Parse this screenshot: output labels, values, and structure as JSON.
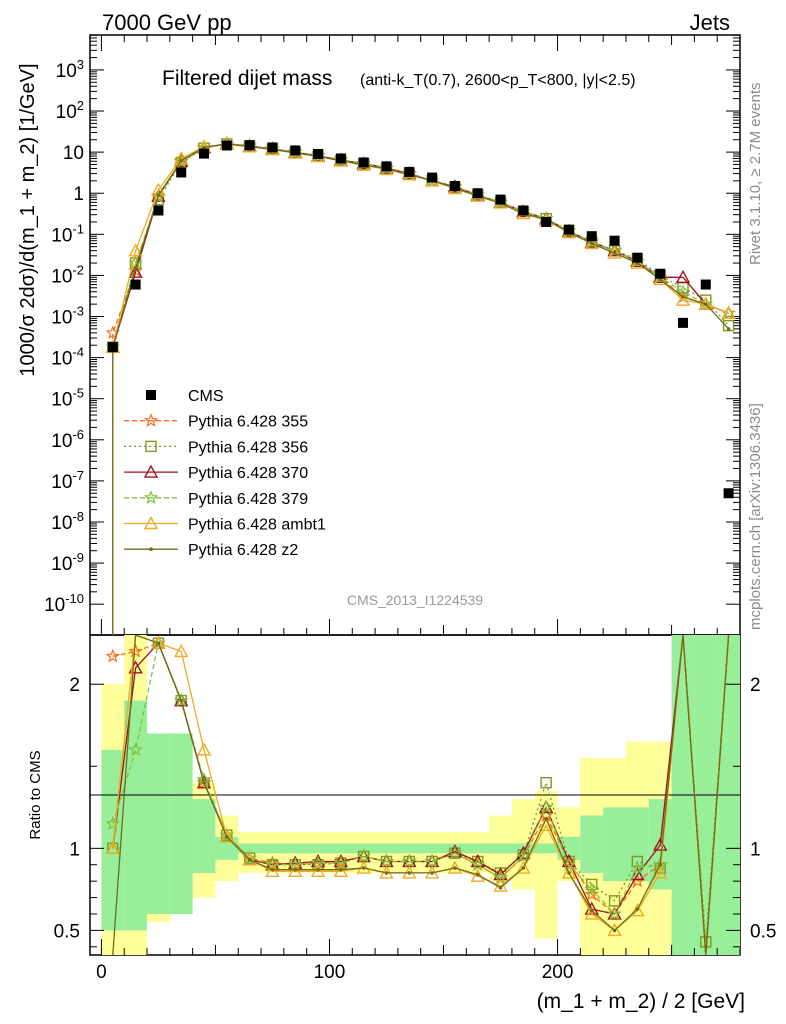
{
  "header": {
    "left": "7000 GeV pp",
    "right": "Jets"
  },
  "side_labels": {
    "rivet": "Rivet 3.1.10, ≥ 2.7M events",
    "mcplots": "mcplots.cern.ch [arXiv:1306.3436]"
  },
  "chart_data": {
    "type": "scatter",
    "title_main": "Filtered dijet mass",
    "title_sub": "(anti-k_T(0.7), 2600<p_T<800, |y|<2.5)",
    "watermark": "CMS_2013_I1224539",
    "xlabel": "(m_1 + m_2) / 2 [GeV]",
    "ylabel_top": "1000/σ 2dσ)/d(m_1 + m_2) [1/GeV]",
    "ylabel_bottom": "Ratio to CMS",
    "xlim": [
      -5,
      280
    ],
    "ylim_top_log10": [
      -10.75,
      3.85
    ],
    "ylim_ratio": [
      0.35,
      2.3
    ],
    "x_ticks": [
      0,
      100,
      200
    ],
    "y_ticks_top": [
      "10^3",
      "10^2",
      "10",
      "1",
      "10^-1",
      "10^-2",
      "10^-3",
      "10^-4",
      "10^-5",
      "10^-6",
      "10^-7",
      "10^-8",
      "10^-9",
      "10^-10"
    ],
    "y_ticks_ratio": [
      2,
      1,
      0.5
    ],
    "legend_position": "left-middle",
    "x": [
      5,
      15,
      25,
      35,
      45,
      55,
      65,
      75,
      85,
      95,
      105,
      115,
      125,
      135,
      145,
      155,
      165,
      175,
      185,
      195,
      205,
      215,
      225,
      235,
      245,
      255,
      265,
      275
    ],
    "data_values": [
      0.00018,
      0.006,
      0.38,
      3.2,
      9.2,
      14.5,
      14.8,
      13.0,
      11.0,
      9.0,
      7.0,
      5.6,
      4.5,
      3.3,
      2.4,
      1.5,
      1.0,
      0.7,
      0.38,
      0.2,
      0.13,
      0.09,
      0.07,
      0.027,
      0.011,
      0.0007,
      0.006,
      5e-08
    ],
    "series": [
      {
        "name": "Pythia 6.428 355",
        "color": "#ff6a1a",
        "dash": "5,3",
        "marker": "star",
        "values": [
          0.0004,
          0.013,
          0.85,
          6.0,
          12.8,
          16.0,
          14.2,
          12.0,
          10.0,
          8.2,
          6.5,
          5.3,
          4.1,
          3.0,
          2.0,
          1.45,
          0.9,
          0.6,
          0.36,
          0.24,
          0.12,
          0.065,
          0.04,
          0.022,
          0.009,
          0.003,
          0.002,
          0.0012
        ],
        "ratio": [
          2.17,
          2.2,
          2.25,
          1.9,
          1.4,
          1.08,
          0.94,
          0.91,
          0.9,
          0.91,
          0.92,
          0.95,
          0.92,
          0.92,
          0.92,
          0.97,
          0.9,
          0.82,
          0.95,
          1.2,
          0.92,
          0.72,
          0.6,
          0.8,
          0.9,
          4.5,
          0.35,
          4.5
        ]
      },
      {
        "name": "Pythia 6.428 356",
        "color": "#7a9a20",
        "dash": "2,3",
        "marker": "square",
        "values": [
          0.00018,
          0.02,
          0.7,
          5.6,
          12.5,
          15.8,
          14.0,
          11.8,
          9.7,
          8.0,
          6.3,
          5.2,
          4.0,
          2.9,
          2.0,
          1.4,
          0.9,
          0.6,
          0.36,
          0.24,
          0.12,
          0.065,
          0.04,
          0.025,
          0.01,
          0.005,
          0.0025,
          0.0006
        ],
        "ratio": [
          1.0,
          2.6,
          2.25,
          1.9,
          1.4,
          1.08,
          0.94,
          0.9,
          0.9,
          0.9,
          0.91,
          0.95,
          0.92,
          0.92,
          0.92,
          0.97,
          0.92,
          0.85,
          0.96,
          1.4,
          0.92,
          0.78,
          0.68,
          0.92,
          0.88,
          4.5,
          0.43,
          4.5
        ]
      },
      {
        "name": "Pythia 6.428 370",
        "color": "#a01020",
        "dash": "",
        "marker": "triangle",
        "values": [
          0.00018,
          0.012,
          0.85,
          6.0,
          12.8,
          16.0,
          14.0,
          12.0,
          9.9,
          8.1,
          6.4,
          5.3,
          4.1,
          3.0,
          2.0,
          1.45,
          0.9,
          0.6,
          0.36,
          0.24,
          0.12,
          0.065,
          0.04,
          0.022,
          0.009,
          0.009,
          0.002,
          0.0012
        ],
        "ratio": [
          1.0,
          2.1,
          2.25,
          1.9,
          1.4,
          1.07,
          0.93,
          0.9,
          0.91,
          0.92,
          0.92,
          0.95,
          0.92,
          0.92,
          0.92,
          0.98,
          0.92,
          0.84,
          0.97,
          1.25,
          0.92,
          0.63,
          0.6,
          0.84,
          1.02,
          4.5,
          0.35,
          4.5
        ]
      },
      {
        "name": "Pythia 6.428 379",
        "color": "#80c040",
        "dash": "5,3",
        "marker": "star",
        "values": [
          0.00018,
          0.02,
          0.8,
          5.8,
          12.6,
          15.9,
          14.0,
          11.9,
          9.8,
          8.0,
          6.3,
          5.2,
          4.0,
          2.9,
          2.0,
          1.4,
          0.9,
          0.6,
          0.36,
          0.24,
          0.12,
          0.065,
          0.04,
          0.022,
          0.009,
          0.004,
          0.002,
          0.0012
        ],
        "ratio": [
          1.15,
          1.6,
          2.25,
          1.9,
          1.42,
          1.08,
          0.94,
          0.9,
          0.9,
          0.91,
          0.91,
          0.95,
          0.92,
          0.92,
          0.92,
          0.97,
          0.9,
          0.82,
          0.95,
          1.25,
          0.9,
          0.75,
          0.6,
          0.88,
          0.9,
          4.5,
          0.35,
          4.5
        ]
      },
      {
        "name": "Pythia 6.428 ambt1",
        "color": "#f2aa20",
        "dash": "",
        "marker": "triangle",
        "values": [
          0.00018,
          0.04,
          1.2,
          7.0,
          13.5,
          15.5,
          13.5,
          11.5,
          9.5,
          7.8,
          6.1,
          4.8,
          3.8,
          2.8,
          2.0,
          1.3,
          0.85,
          0.58,
          0.32,
          0.22,
          0.11,
          0.06,
          0.035,
          0.02,
          0.008,
          0.0025,
          0.002,
          0.0012
        ],
        "ratio": [
          1.0,
          2.6,
          2.25,
          2.2,
          1.6,
          1.07,
          0.93,
          0.86,
          0.86,
          0.86,
          0.86,
          0.88,
          0.85,
          0.85,
          0.85,
          0.88,
          0.83,
          0.77,
          0.88,
          1.14,
          0.85,
          0.6,
          0.5,
          0.62,
          0.85,
          4.5,
          0.35,
          4.5
        ]
      },
      {
        "name": "Pythia 6.428 z2",
        "color": "#6e6e1a",
        "dash": "",
        "marker": "dot",
        "values": [
          0.00018,
          0.015,
          0.9,
          6.2,
          13.0,
          15.8,
          13.8,
          11.6,
          9.6,
          7.9,
          6.2,
          4.9,
          3.9,
          2.8,
          2.0,
          1.35,
          0.85,
          0.57,
          0.32,
          0.23,
          0.11,
          0.06,
          0.035,
          0.02,
          0.008,
          0.003,
          0.002,
          0.0005
        ],
        "ratio": [
          0.35,
          2.5,
          2.25,
          1.9,
          1.4,
          1.07,
          0.93,
          0.87,
          0.87,
          0.87,
          0.87,
          0.88,
          0.85,
          0.85,
          0.85,
          0.88,
          0.84,
          0.76,
          0.88,
          1.18,
          0.85,
          0.62,
          0.5,
          0.63,
          0.9,
          4.5,
          0.35,
          4.5
        ]
      }
    ],
    "ratio_band_inner": [
      [
        0,
        10,
        0.5,
        1.6
      ],
      [
        10,
        20,
        0.5,
        1.9
      ],
      [
        20,
        30,
        0.6,
        1.7
      ],
      [
        30,
        40,
        0.6,
        1.7
      ],
      [
        40,
        50,
        0.85,
        1.3
      ],
      [
        50,
        60,
        0.93,
        1.07
      ],
      [
        60,
        200,
        0.97,
        1.03
      ],
      [
        200,
        210,
        0.93,
        1.07
      ],
      [
        210,
        220,
        0.85,
        1.2
      ],
      [
        220,
        240,
        0.8,
        1.25
      ],
      [
        240,
        250,
        0.75,
        1.3
      ],
      [
        250,
        260,
        0.35,
        2.3
      ],
      [
        260,
        270,
        0.35,
        2.3
      ],
      [
        270,
        280,
        0.35,
        2.3
      ]
    ],
    "ratio_band_outer": [
      [
        0,
        10,
        0.35,
        2.0
      ],
      [
        10,
        20,
        0.35,
        2.3
      ],
      [
        20,
        30,
        0.55,
        1.5
      ],
      [
        30,
        40,
        0.6,
        1.45
      ],
      [
        40,
        50,
        0.7,
        1.4
      ],
      [
        50,
        60,
        0.8,
        1.2
      ],
      [
        60,
        170,
        0.85,
        1.1
      ],
      [
        170,
        180,
        0.8,
        1.2
      ],
      [
        180,
        190,
        0.75,
        1.3
      ],
      [
        190,
        200,
        0.45,
        1.35
      ],
      [
        200,
        210,
        0.8,
        1.25
      ],
      [
        210,
        230,
        0.35,
        1.55
      ],
      [
        230,
        250,
        0.35,
        1.65
      ],
      [
        250,
        270,
        0.35,
        2.3
      ],
      [
        270,
        280,
        0.35,
        2.3
      ]
    ]
  }
}
